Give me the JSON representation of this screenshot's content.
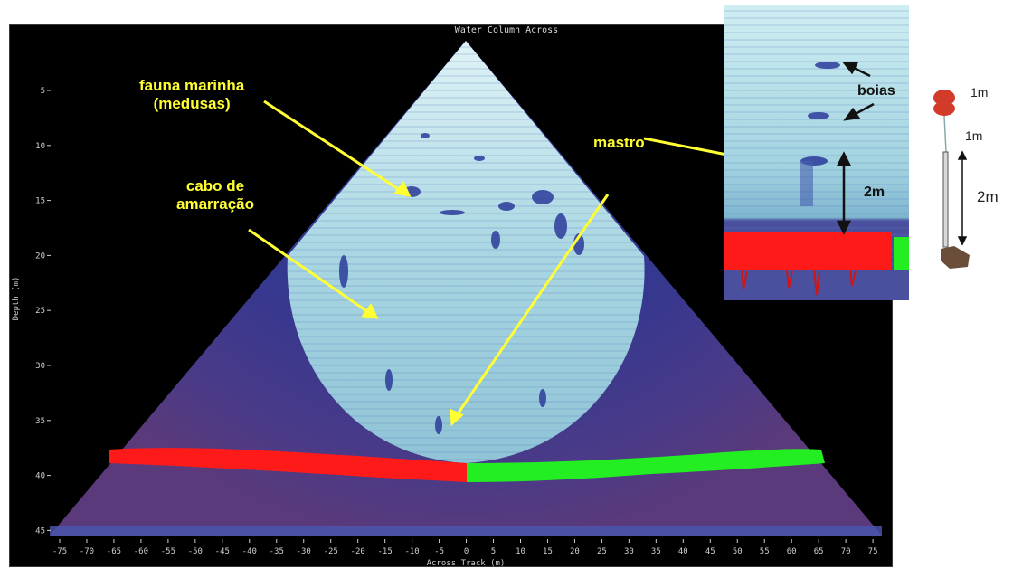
{
  "panel": {
    "title": "Water Column Across",
    "ylabel": "Depth (m)",
    "xlabel": "Across Track (m)",
    "y_ticks": [
      "5",
      "10",
      "15",
      "20",
      "25",
      "30",
      "35",
      "40",
      "45"
    ],
    "x_ticks": [
      "-75",
      "-70",
      "-65",
      "-60",
      "-55",
      "-50",
      "-45",
      "-40",
      "-35",
      "-30",
      "-25",
      "-20",
      "-15",
      "-10",
      "-5",
      "0",
      "5",
      "10",
      "15",
      "20",
      "25",
      "30",
      "35",
      "40",
      "45",
      "50",
      "55",
      "60",
      "65",
      "70",
      "75"
    ]
  },
  "annotations": {
    "fauna_line1": "fauna marinha",
    "fauna_line2": "(medusas)",
    "cabo_line1": "cabo de",
    "cabo_line2": "amarração",
    "mastro": "mastro"
  },
  "inset": {
    "boias": "boias",
    "height_label": "2m"
  },
  "mooring_diagram": {
    "label_top": "1m",
    "label_mid": "1m",
    "label_bottom": "2m"
  },
  "colors": {
    "annotation": "#ffff33",
    "port_bottom": "#ff1a1a",
    "starboard_bottom": "#22ee22",
    "water_column": "#b8e2ea",
    "background_noise": "#3a3f99"
  }
}
